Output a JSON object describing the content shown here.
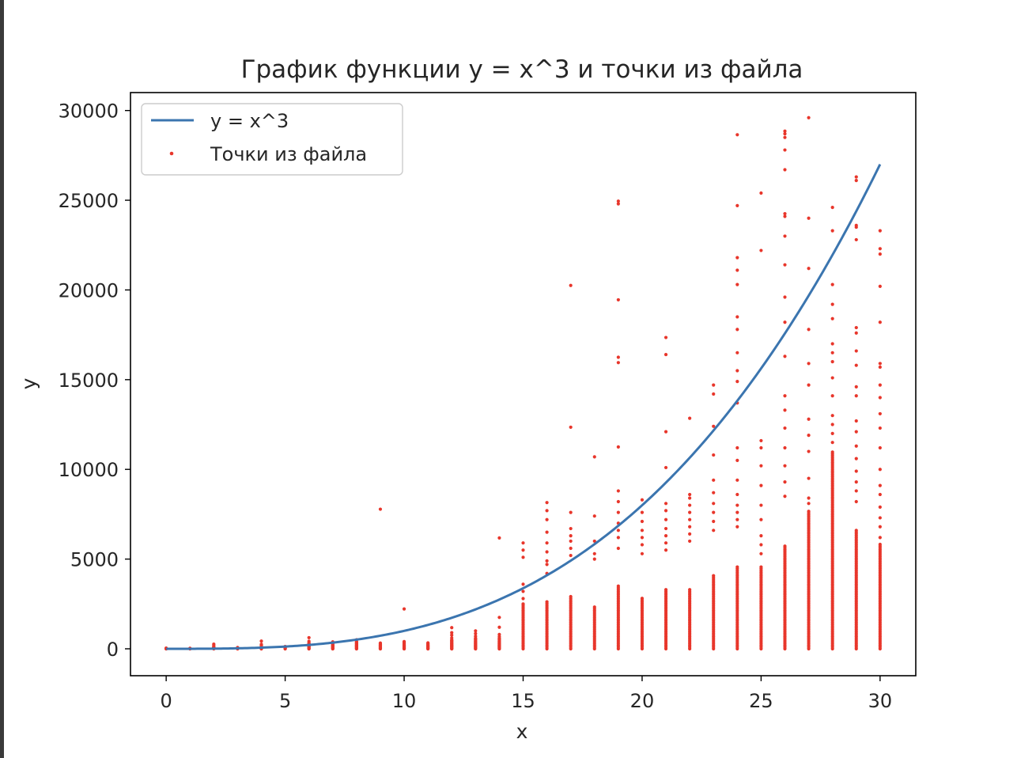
{
  "chart_data": {
    "type": "scatter",
    "title": "График функции y = x^3 и точки из файла",
    "xlabel": "x",
    "ylabel": "y",
    "xlim": [
      -1.5,
      31.5
    ],
    "ylim": [
      -1500,
      31000
    ],
    "x_ticks": [
      0,
      5,
      10,
      15,
      20,
      25,
      30
    ],
    "y_ticks": [
      0,
      5000,
      10000,
      15000,
      20000,
      25000,
      30000
    ],
    "grid": false,
    "legend_position": "upper-left",
    "series": [
      {
        "name": "y = x^3",
        "kind": "line",
        "color": "#3b75af",
        "function": "x^3",
        "x_range": [
          0,
          30
        ]
      },
      {
        "name": "Точки из файла",
        "kind": "scatter",
        "color": "#e8362b",
        "columns": [
          {
            "x": 0,
            "y": [
              0,
              5,
              10,
              20,
              40
            ]
          },
          {
            "x": 1,
            "y": [
              0,
              5,
              10,
              15,
              20,
              30
            ]
          },
          {
            "x": 2,
            "y": [
              0,
              20,
              40,
              60,
              100,
              180,
              260
            ]
          },
          {
            "x": 3,
            "y": [
              0,
              10,
              20,
              30,
              50,
              70
            ]
          },
          {
            "x": 4,
            "y": [
              0,
              20,
              40,
              60,
              80,
              120,
              180,
              250,
              430
            ]
          },
          {
            "x": 5,
            "y": [
              0,
              25,
              50,
              75,
              100,
              130
            ]
          },
          {
            "x": 6,
            "y": [
              0,
              40,
              80,
              120,
              160,
              200,
              260,
              330,
              420,
              620
            ]
          },
          {
            "x": 7,
            "y": [
              0,
              40,
              80,
              120,
              160,
              200,
              250,
              300,
              350
            ]
          },
          {
            "x": 8,
            "y": [
              0,
              40,
              80,
              120,
              160,
              200,
              240,
              300,
              350,
              400,
              500
            ]
          },
          {
            "x": 9,
            "y": [
              0,
              40,
              80,
              120,
              160,
              200,
              260,
              320,
              7780
            ]
          },
          {
            "x": 10,
            "y": [
              0,
              40,
              80,
              120,
              160,
              200,
              260,
              330,
              400,
              2220
            ]
          },
          {
            "x": 11,
            "y": [
              0,
              40,
              80,
              120,
              160,
              200,
              260,
              330
            ]
          },
          {
            "x": 12,
            "y": [
              0,
              50,
              100,
              150,
              200,
              250,
              300,
              360,
              420,
              480,
              600,
              760,
              900,
              1180
            ]
          },
          {
            "x": 13,
            "y": [
              0,
              50,
              100,
              150,
              200,
              250,
              300,
              360,
              420,
              500,
              580,
              700,
              850,
              1000
            ]
          },
          {
            "x": 14,
            "y": [
              0,
              50,
              100,
              150,
              200,
              250,
              300,
              360,
              420,
              500,
              580,
              680,
              800,
              1200,
              1750,
              6180
            ]
          },
          {
            "x": 15,
            "y": [
              3600,
              3200,
              2800,
              2500,
              5100,
              5500,
              5900
            ]
          },
          {
            "x": 16,
            "y": [
              4200,
              4700,
              4900,
              5400,
              5900,
              6500,
              7200,
              7700,
              8150
            ]
          },
          {
            "x": 17,
            "y": [
              5200,
              5600,
              6000,
              6300,
              6700,
              7600,
              12350,
              20250
            ]
          },
          {
            "x": 18,
            "y": [
              5000,
              5300,
              6000,
              7400,
              10700
            ]
          },
          {
            "x": 19,
            "y": [
              5600,
              6200,
              6600,
              7000,
              7600,
              8200,
              8800,
              11250,
              15950,
              16250,
              19450,
              24800,
              24950
            ]
          },
          {
            "x": 20,
            "y": [
              5300,
              5800,
              6200,
              6600,
              7100,
              7600,
              8300
            ]
          },
          {
            "x": 21,
            "y": [
              5500,
              5900,
              6300,
              6700,
              7200,
              7700,
              8100,
              10100,
              12100,
              16400,
              17350
            ]
          },
          {
            "x": 22,
            "y": [
              6000,
              6400,
              6800,
              7200,
              7600,
              8000,
              8400,
              8600,
              12850
            ]
          },
          {
            "x": 23,
            "y": [
              6600,
              7100,
              7600,
              8100,
              8700,
              9400,
              10800,
              12400,
              14200,
              14700
            ]
          },
          {
            "x": 24,
            "y": [
              6800,
              7200,
              7600,
              8000,
              8600,
              9400,
              10500,
              11200,
              13700,
              14900,
              15500,
              16500,
              17800,
              18500,
              20300,
              21100,
              21800,
              24700,
              28650
            ]
          },
          {
            "x": 25,
            "y": [
              5300,
              5800,
              6300,
              7200,
              8000,
              9100,
              10200,
              11200,
              11600,
              22200,
              25400
            ]
          },
          {
            "x": 26,
            "y": [
              8500,
              9300,
              10200,
              11200,
              12300,
              13300,
              14100,
              16300,
              18200,
              19600,
              21400,
              23000,
              24100,
              24250,
              26700,
              27800,
              28500,
              28700,
              28850
            ]
          },
          {
            "x": 27,
            "y": [
              8100,
              8400,
              9500,
              11000,
              11900,
              12800,
              14700,
              15900,
              17800,
              21200,
              24000,
              29600
            ]
          },
          {
            "x": 28,
            "y": [
              11500,
              12000,
              12500,
              13000,
              14100,
              15100,
              16000,
              16500,
              17000,
              18400,
              19200,
              20300,
              23300,
              24600
            ]
          },
          {
            "x": 29,
            "y": [
              8200,
              8800,
              9300,
              9900,
              10600,
              11300,
              12100,
              12700,
              14100,
              14600,
              15800,
              16600,
              17600,
              17900,
              22800,
              23500,
              23600,
              26100,
              26300
            ]
          },
          {
            "x": 30,
            "y": [
              6200,
              6800,
              7300,
              7900,
              8600,
              9100,
              10000,
              11200,
              12300,
              13100,
              14000,
              14700,
              15700,
              15900,
              18200,
              20200,
              22000,
              22300,
              23300
            ]
          }
        ],
        "dense_columns": [
          {
            "x": 0,
            "top": 80
          },
          {
            "x": 1,
            "top": 50
          },
          {
            "x": 2,
            "top": 120
          },
          {
            "x": 3,
            "top": 60
          },
          {
            "x": 4,
            "top": 200
          },
          {
            "x": 5,
            "top": 150
          },
          {
            "x": 6,
            "top": 320
          },
          {
            "x": 7,
            "top": 400
          },
          {
            "x": 8,
            "top": 400
          },
          {
            "x": 9,
            "top": 350
          },
          {
            "x": 10,
            "top": 420
          },
          {
            "x": 11,
            "top": 350
          },
          {
            "x": 12,
            "top": 520
          },
          {
            "x": 13,
            "top": 600
          },
          {
            "x": 14,
            "top": 650
          },
          {
            "x": 15,
            "top": 2500
          },
          {
            "x": 16,
            "top": 2700
          },
          {
            "x": 17,
            "top": 3000
          },
          {
            "x": 18,
            "top": 2400
          },
          {
            "x": 19,
            "top": 3500
          },
          {
            "x": 20,
            "top": 2900
          },
          {
            "x": 21,
            "top": 3300
          },
          {
            "x": 22,
            "top": 3300
          },
          {
            "x": 23,
            "top": 4100
          },
          {
            "x": 24,
            "top": 4600
          },
          {
            "x": 25,
            "top": 4600
          },
          {
            "x": 26,
            "top": 5800
          },
          {
            "x": 27,
            "top": 7700
          },
          {
            "x": 28,
            "top": 11000
          },
          {
            "x": 29,
            "top": 6600
          },
          {
            "x": 30,
            "top": 5900
          }
        ]
      }
    ]
  }
}
